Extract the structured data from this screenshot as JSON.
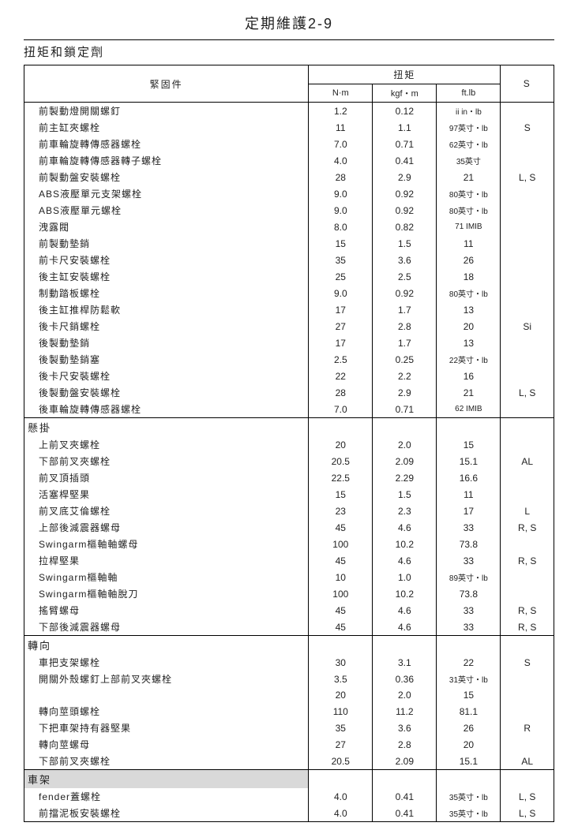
{
  "page_title": "定期維護2-9",
  "section_title": "扭矩和鎖定劑",
  "header": {
    "fastener": "緊固件",
    "torque": "扭矩",
    "nm": "N·m",
    "kgfm": "kgf・m",
    "ftlb": "ft.lb",
    "s": "S"
  },
  "groups": [
    {
      "label": null,
      "rows": [
        {
          "n": "前製動燈開關螺釘",
          "a": "1.2",
          "b": "0.12",
          "c": "ii in・lb",
          "csmall": true,
          "s": ""
        },
        {
          "n": "前主缸夾螺栓",
          "a": "11",
          "b": "1.1",
          "c": "97英寸・lb",
          "csmall": true,
          "s": "S"
        },
        {
          "n": "前車輪旋轉傳感器螺栓",
          "a": "7.0",
          "b": "0.71",
          "c": "62英寸・lb",
          "csmall": true,
          "s": ""
        },
        {
          "n": "前車輪旋轉傳感器轉子螺栓",
          "a": "4.0",
          "b": "0.41",
          "c": "35英寸",
          "csmall": true,
          "s": ""
        },
        {
          "n": "前製動盤安裝螺栓",
          "a": "28",
          "b": "2.9",
          "c": "21",
          "s": "L, S"
        },
        {
          "n": "ABS液壓單元支架螺栓",
          "a": "9.0",
          "b": "0.92",
          "c": "80英寸・lb",
          "csmall": true,
          "s": ""
        },
        {
          "n": "ABS液壓單元螺栓",
          "a": "9.0",
          "b": "0.92",
          "c": "80英寸・lb",
          "csmall": true,
          "s": ""
        },
        {
          "n": "洩露閥",
          "a": "8.0",
          "b": "0.82",
          "c": "71 IMIB",
          "csmall": true,
          "s": ""
        },
        {
          "n": "前製動墊銷",
          "a": "15",
          "b": "1.5",
          "c": "11",
          "s": ""
        },
        {
          "n": "前卡尺安裝螺栓",
          "a": "35",
          "b": "3.6",
          "c": "26",
          "s": ""
        },
        {
          "n": "後主缸安裝螺栓",
          "a": "25",
          "b": "2.5",
          "c": "18",
          "s": ""
        },
        {
          "n": "制動踏板螺栓",
          "a": "9.0",
          "b": "0.92",
          "c": "80英寸・lb",
          "csmall": true,
          "s": ""
        },
        {
          "n": "後主缸推桿防鬆軟",
          "a": "17",
          "b": "1.7",
          "c": "13",
          "s": ""
        },
        {
          "n": "後卡尺銷螺栓",
          "a": "27",
          "b": "2.8",
          "c": "20",
          "s": "Si"
        },
        {
          "n": "後製動墊銷",
          "a": "17",
          "b": "1.7",
          "c": "13",
          "s": ""
        },
        {
          "n": "後製動墊銷塞",
          "a": "2.5",
          "b": "0.25",
          "c": "22英寸・lb",
          "csmall": true,
          "s": ""
        },
        {
          "n": "後卡尺安裝螺栓",
          "a": "22",
          "b": "2.2",
          "c": "16",
          "s": ""
        },
        {
          "n": "後製動盤安裝螺栓",
          "a": "28",
          "b": "2.9",
          "c": "21",
          "s": "L, S"
        },
        {
          "n": "後車輪旋轉傳感器螺栓",
          "a": "7.0",
          "b": "0.71",
          "c": "62 IMIB",
          "csmall": true,
          "s": ""
        }
      ]
    },
    {
      "label": "懸掛",
      "rows": [
        {
          "n": "上前叉夾螺栓",
          "a": "20",
          "b": "2.0",
          "c": "15",
          "s": ""
        },
        {
          "n": "下部前叉夾螺栓",
          "a": "20.5",
          "b": "2.09",
          "c": "15.1",
          "s": "AL"
        },
        {
          "n": "前叉頂插頭",
          "a": "22.5",
          "b": "2.29",
          "c": "16.6",
          "s": ""
        },
        {
          "n": "活塞桿堅果",
          "a": "15",
          "b": "1.5",
          "c": "11",
          "s": ""
        },
        {
          "n": "前叉底艾倫螺栓",
          "a": "23",
          "b": "2.3",
          "c": "17",
          "s": "L"
        },
        {
          "n": "上部後減震器螺母",
          "a": "45",
          "b": "4.6",
          "c": "33",
          "s": "R, S"
        },
        {
          "n": "Swingarm樞軸軸螺母",
          "a": "100",
          "b": "10.2",
          "c": "73.8",
          "s": ""
        },
        {
          "n": "拉桿堅果",
          "a": "45",
          "b": "4.6",
          "c": "33",
          "s": "R, S"
        },
        {
          "n": "Swingarm樞軸軸",
          "a": "10",
          "b": "1.0",
          "c": "89英寸・lb",
          "csmall": true,
          "s": ""
        },
        {
          "n": "Swingarm樞軸軸脫刀",
          "a": "100",
          "b": "10.2",
          "c": "73.8",
          "s": ""
        },
        {
          "n": "搖臂螺母",
          "a": "45",
          "b": "4.6",
          "c": "33",
          "s": "R, S"
        },
        {
          "n": "下部後減震器螺母",
          "a": "45",
          "b": "4.6",
          "c": "33",
          "s": "R, S"
        }
      ]
    },
    {
      "label": "轉向",
      "rows": [
        {
          "n": "車把支架螺栓",
          "a": "30",
          "b": "3.1",
          "c": "22",
          "s": "S"
        },
        {
          "n": "開關外殼螺釘上部前叉夾螺栓",
          "a": "3.5",
          "b": "0.36",
          "c": "31英寸・lb",
          "csmall": true,
          "s": ""
        },
        {
          "n": "",
          "a": "20",
          "b": "2.0",
          "c": "15",
          "s": ""
        },
        {
          "n": "轉向莖頭螺栓",
          "a": "110",
          "b": "11.2",
          "c": "81.1",
          "s": ""
        },
        {
          "n": "下把車架持有器堅果",
          "a": "35",
          "b": "3.6",
          "c": "26",
          "s": "R"
        },
        {
          "n": "轉向莖螺母",
          "a": "27",
          "b": "2.8",
          "c": "20",
          "s": ""
        },
        {
          "n": "下部前叉夾螺栓",
          "a": "20.5",
          "b": "2.09",
          "c": "15.1",
          "s": "AL"
        }
      ]
    },
    {
      "label": "車架",
      "highlight": true,
      "rows": [
        {
          "n": "fender蓋螺栓",
          "a": "4.0",
          "b": "0.41",
          "c": "35英寸・lb",
          "csmall": true,
          "s": "L, S"
        },
        {
          "n": "前擋泥板安裝螺栓",
          "a": "4.0",
          "b": "0.41",
          "c": "35英寸・lb",
          "csmall": true,
          "s": "L, S"
        }
      ]
    }
  ]
}
